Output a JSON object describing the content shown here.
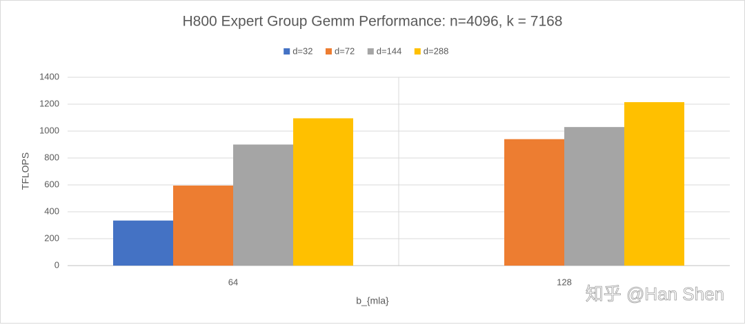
{
  "chart_data": {
    "type": "bar",
    "title": "H800 Expert Group Gemm Performance: n=4096, k = 7168",
    "x_label": "b_{mla}",
    "y_label": "TFLOPS",
    "categories": [
      "64",
      "128"
    ],
    "series": [
      {
        "name": "d=32",
        "color": "#4472c4",
        "values": [
          335,
          null
        ]
      },
      {
        "name": "d=72",
        "color": "#ed7d31",
        "values": [
          595,
          940
        ]
      },
      {
        "name": "d=144",
        "color": "#a5a5a5",
        "values": [
          900,
          1030
        ]
      },
      {
        "name": "d=288",
        "color": "#ffc000",
        "values": [
          1095,
          1215
        ]
      }
    ],
    "ylim": [
      0,
      1400
    ],
    "yticks": [
      0,
      200,
      400,
      600,
      800,
      1000,
      1200,
      1400
    ],
    "grid": true,
    "legend": "top",
    "watermark": "知乎 @Han Shen"
  }
}
